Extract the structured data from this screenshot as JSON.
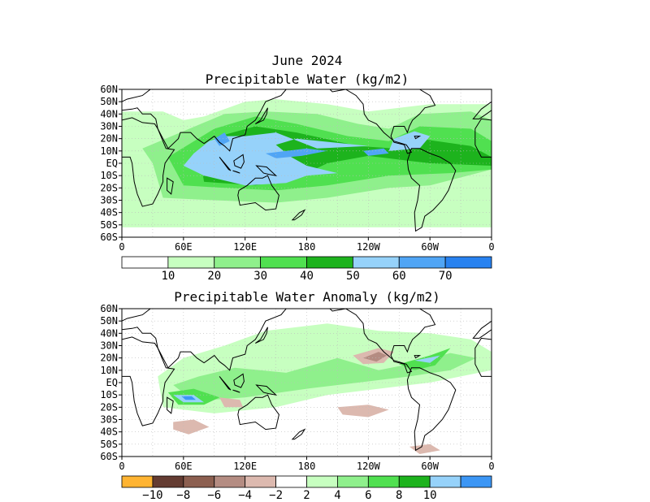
{
  "page": {
    "title_line1": "June 2024",
    "title_line2": "Precipitable Water (kg/m2)",
    "title_anomaly": "Precipitable Water Anomaly (kg/m2)"
  },
  "lat_labels": [
    "60N",
    "50N",
    "40N",
    "30N",
    "20N",
    "10N",
    "EQ",
    "10S",
    "20S",
    "30S",
    "40S",
    "50S",
    "60S"
  ],
  "lon_labels": [
    "0",
    "60E",
    "120E",
    "180",
    "120W",
    "60W",
    "0"
  ],
  "pw_colorbar": {
    "colors": [
      "#ffffff",
      "#c7ffc0",
      "#8ff08c",
      "#50e050",
      "#1db31d",
      "#96d2fa",
      "#50a5f5",
      "#2882f0"
    ],
    "labels": [
      "10",
      "20",
      "30",
      "40",
      "50",
      "60",
      "70"
    ]
  },
  "anom_colorbar": {
    "colors": [
      "#ffb432",
      "#643c32",
      "#8c5f50",
      "#b48c82",
      "#dcb9af",
      "#ffffff",
      "#c7ffc0",
      "#8ff08c",
      "#50e050",
      "#1db31d",
      "#96d2fa",
      "#3c96f5"
    ],
    "labels": [
      "−10",
      "−8",
      "−6",
      "−4",
      "−2",
      "2",
      "4",
      "6",
      "8",
      "10"
    ]
  },
  "colors": {
    "land_outline": "#000000",
    "grid": "#bbbbbb"
  }
}
